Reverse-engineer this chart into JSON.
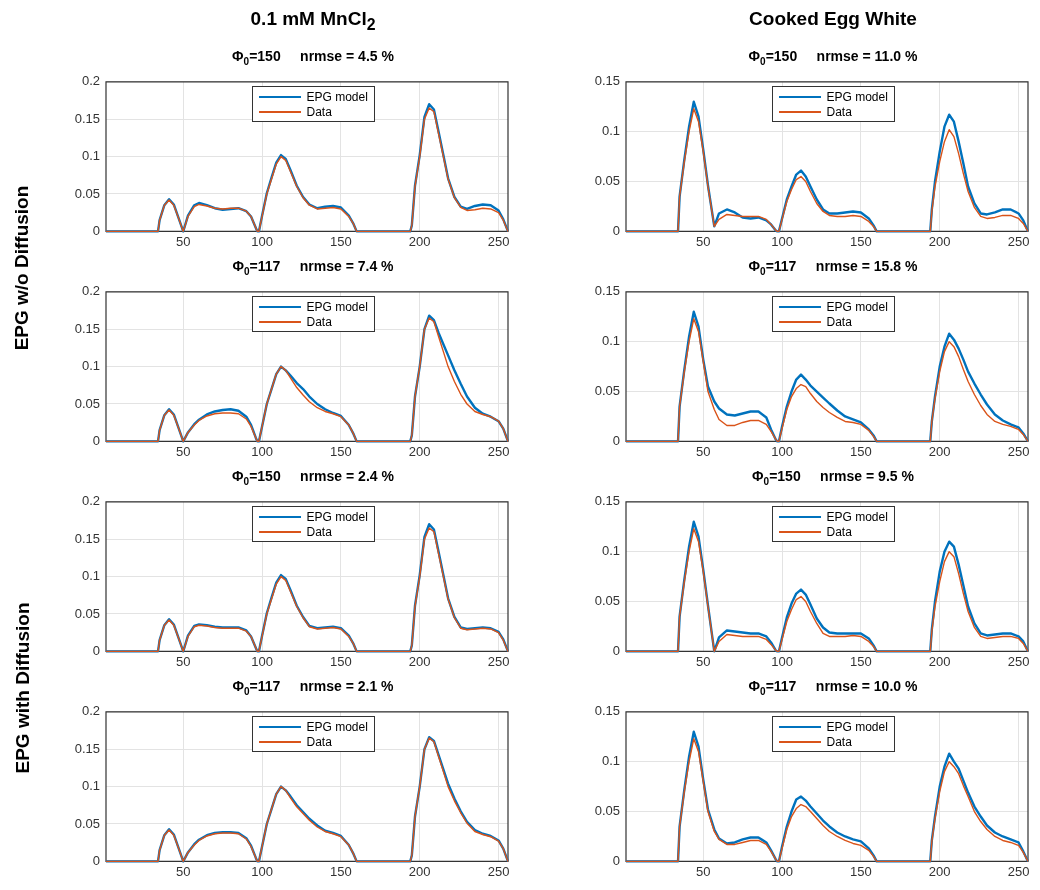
{
  "chart_data": [
    {
      "type": "line",
      "title": "Φ$_{0}$=150     nrmse = 4.5 %",
      "annotations": [
        "0.1 mM MnCl$_{2}$",
        "EPG w/o Diffusion"
      ],
      "legend": "top",
      "grid": true,
      "marker": "none",
      "line_style": "solid",
      "xlim": [
        1,
        256
      ],
      "xticks": [
        50,
        100,
        150,
        200,
        250
      ],
      "ylim": [
        0,
        0.2
      ],
      "yticks": [
        0,
        0.05,
        0.1,
        0.15,
        0.2
      ],
      "x": [
        1,
        34,
        35,
        38,
        41,
        44,
        47,
        50,
        53,
        57,
        60,
        65,
        70,
        75,
        80,
        85,
        90,
        93,
        96,
        97,
        98,
        100,
        103,
        106,
        109,
        112,
        115,
        118,
        122,
        126,
        130,
        135,
        140,
        145,
        150,
        155,
        158,
        160,
        170,
        194,
        195,
        197,
        200,
        203,
        206,
        209,
        212,
        215,
        218,
        222,
        226,
        230,
        235,
        240,
        245,
        250,
        253,
        256
      ],
      "series": [
        {
          "name": "EPG model",
          "color": "#0072bd",
          "values": [
            0,
            0,
            0.015,
            0.035,
            0.043,
            0.036,
            0.018,
            0,
            0.021,
            0.035,
            0.038,
            0.035,
            0.031,
            0.029,
            0.03,
            0.031,
            0.027,
            0.02,
            0.005,
            0,
            0,
            0.021,
            0.051,
            0.072,
            0.092,
            0.102,
            0.097,
            0.082,
            0.061,
            0.046,
            0.036,
            0.031,
            0.033,
            0.034,
            0.032,
            0.021,
            0.01,
            0,
            0,
            0,
            0.008,
            0.061,
            0.102,
            0.153,
            0.17,
            0.163,
            0.133,
            0.102,
            0.071,
            0.046,
            0.033,
            0.03,
            0.034,
            0.036,
            0.035,
            0.028,
            0.016,
            0
          ]
        },
        {
          "name": "Data",
          "color": "#d95319",
          "values": [
            0,
            0,
            0.015,
            0.035,
            0.042,
            0.035,
            0.018,
            0,
            0.02,
            0.033,
            0.036,
            0.034,
            0.031,
            0.03,
            0.031,
            0.031,
            0.027,
            0.02,
            0.005,
            0,
            0,
            0.02,
            0.05,
            0.07,
            0.09,
            0.1,
            0.095,
            0.08,
            0.06,
            0.045,
            0.035,
            0.03,
            0.031,
            0.032,
            0.03,
            0.02,
            0.01,
            0,
            0,
            0,
            0.008,
            0.06,
            0.1,
            0.15,
            0.165,
            0.16,
            0.13,
            0.1,
            0.07,
            0.045,
            0.032,
            0.028,
            0.029,
            0.031,
            0.03,
            0.025,
            0.015,
            0
          ]
        }
      ]
    },
    {
      "type": "line",
      "title": "Φ$_{0}$=150     nrmse = 11.0 %",
      "annotations": [
        "Cooked Egg White"
      ],
      "legend": "top",
      "grid": true,
      "marker": "none",
      "line_style": "solid",
      "xlim": [
        1,
        256
      ],
      "xticks": [
        50,
        100,
        150,
        200,
        250
      ],
      "ylim": [
        0,
        0.15
      ],
      "yticks": [
        0,
        0.05,
        0.1,
        0.15
      ],
      "x": [
        1,
        34,
        35,
        38,
        41,
        44,
        47,
        50,
        53,
        57,
        60,
        65,
        70,
        75,
        80,
        85,
        90,
        93,
        96,
        97,
        98,
        100,
        103,
        106,
        109,
        112,
        115,
        118,
        122,
        126,
        130,
        135,
        140,
        145,
        150,
        155,
        158,
        160,
        170,
        194,
        195,
        197,
        200,
        203,
        206,
        209,
        212,
        215,
        218,
        222,
        226,
        230,
        235,
        240,
        245,
        250,
        253,
        256
      ],
      "series": [
        {
          "name": "EPG model",
          "color": "#0072bd",
          "values": [
            0,
            0,
            0.035,
            0.072,
            0.105,
            0.13,
            0.115,
            0.082,
            0.046,
            0.005,
            0.018,
            0.022,
            0.019,
            0.014,
            0.013,
            0.014,
            0.011,
            0.007,
            0.001,
            0,
            0,
            0.013,
            0.032,
            0.045,
            0.057,
            0.061,
            0.055,
            0.045,
            0.032,
            0.022,
            0.018,
            0.018,
            0.019,
            0.02,
            0.019,
            0.013,
            0.006,
            0,
            0,
            0,
            0.022,
            0.05,
            0.08,
            0.105,
            0.117,
            0.11,
            0.09,
            0.068,
            0.045,
            0.028,
            0.018,
            0.017,
            0.019,
            0.022,
            0.022,
            0.018,
            0.011,
            0
          ]
        },
        {
          "name": "Data",
          "color": "#d95319",
          "values": [
            0,
            0,
            0.035,
            0.07,
            0.1,
            0.123,
            0.11,
            0.08,
            0.045,
            0.005,
            0.012,
            0.017,
            0.016,
            0.015,
            0.015,
            0.015,
            0.012,
            0.007,
            0.001,
            0,
            0,
            0.012,
            0.03,
            0.042,
            0.052,
            0.055,
            0.05,
            0.04,
            0.028,
            0.02,
            0.016,
            0.015,
            0.015,
            0.016,
            0.015,
            0.01,
            0.005,
            0,
            0,
            0,
            0.02,
            0.045,
            0.07,
            0.09,
            0.102,
            0.095,
            0.078,
            0.058,
            0.04,
            0.024,
            0.015,
            0.013,
            0.014,
            0.016,
            0.016,
            0.013,
            0.008,
            0
          ]
        }
      ]
    },
    {
      "type": "line",
      "title": "Φ$_{0}$=117     nrmse = 7.4 %",
      "legend": "top",
      "grid": true,
      "marker": "none",
      "line_style": "solid",
      "xlim": [
        1,
        256
      ],
      "xticks": [
        50,
        100,
        150,
        200,
        250
      ],
      "ylim": [
        0,
        0.2
      ],
      "yticks": [
        0,
        0.05,
        0.1,
        0.15,
        0.2
      ],
      "x": [
        1,
        34,
        35,
        38,
        41,
        44,
        47,
        50,
        53,
        57,
        60,
        65,
        70,
        75,
        80,
        85,
        90,
        93,
        96,
        97,
        98,
        100,
        103,
        106,
        109,
        112,
        115,
        118,
        122,
        126,
        130,
        135,
        140,
        145,
        150,
        155,
        158,
        160,
        170,
        194,
        195,
        197,
        200,
        203,
        206,
        209,
        212,
        215,
        218,
        222,
        226,
        230,
        235,
        240,
        245,
        250,
        253,
        256
      ],
      "series": [
        {
          "name": "EPG model",
          "color": "#0072bd",
          "values": [
            0,
            0,
            0.015,
            0.035,
            0.043,
            0.036,
            0.018,
            0,
            0.012,
            0.023,
            0.029,
            0.036,
            0.04,
            0.042,
            0.043,
            0.041,
            0.033,
            0.022,
            0.005,
            0,
            0,
            0.02,
            0.05,
            0.07,
            0.09,
            0.1,
            0.095,
            0.088,
            0.078,
            0.07,
            0.06,
            0.05,
            0.043,
            0.038,
            0.034,
            0.022,
            0.01,
            0,
            0,
            0,
            0.008,
            0.06,
            0.1,
            0.15,
            0.168,
            0.162,
            0.145,
            0.13,
            0.115,
            0.095,
            0.077,
            0.06,
            0.045,
            0.037,
            0.033,
            0.027,
            0.017,
            0
          ]
        },
        {
          "name": "Data",
          "color": "#d95319",
          "values": [
            0,
            0,
            0.015,
            0.035,
            0.042,
            0.035,
            0.018,
            0,
            0.012,
            0.022,
            0.028,
            0.034,
            0.037,
            0.038,
            0.038,
            0.037,
            0.03,
            0.02,
            0.005,
            0,
            0,
            0.02,
            0.05,
            0.07,
            0.09,
            0.1,
            0.095,
            0.085,
            0.072,
            0.062,
            0.053,
            0.045,
            0.04,
            0.037,
            0.033,
            0.022,
            0.01,
            0,
            0,
            0,
            0.008,
            0.06,
            0.1,
            0.15,
            0.165,
            0.16,
            0.14,
            0.12,
            0.1,
            0.08,
            0.063,
            0.05,
            0.04,
            0.036,
            0.033,
            0.027,
            0.017,
            0
          ]
        }
      ]
    },
    {
      "type": "line",
      "title": "Φ$_{0}$=117     nrmse = 15.8 %",
      "legend": "top",
      "grid": true,
      "marker": "none",
      "line_style": "solid",
      "xlim": [
        1,
        256
      ],
      "xticks": [
        50,
        100,
        150,
        200,
        250
      ],
      "ylim": [
        0,
        0.15
      ],
      "yticks": [
        0,
        0.05,
        0.1,
        0.15
      ],
      "x": [
        1,
        34,
        35,
        38,
        41,
        44,
        47,
        50,
        53,
        57,
        60,
        65,
        70,
        75,
        80,
        85,
        90,
        93,
        96,
        97,
        98,
        100,
        103,
        106,
        109,
        112,
        115,
        118,
        122,
        126,
        130,
        135,
        140,
        145,
        150,
        155,
        158,
        160,
        170,
        194,
        195,
        197,
        200,
        203,
        206,
        209,
        212,
        215,
        218,
        222,
        226,
        230,
        235,
        240,
        245,
        250,
        253,
        256
      ],
      "series": [
        {
          "name": "EPG model",
          "color": "#0072bd",
          "values": [
            0,
            0,
            0.035,
            0.072,
            0.105,
            0.13,
            0.115,
            0.082,
            0.055,
            0.04,
            0.033,
            0.027,
            0.026,
            0.028,
            0.03,
            0.03,
            0.024,
            0.012,
            0.002,
            0,
            0,
            0.015,
            0.035,
            0.05,
            0.062,
            0.067,
            0.062,
            0.056,
            0.05,
            0.044,
            0.038,
            0.031,
            0.025,
            0.022,
            0.019,
            0.012,
            0.006,
            0,
            0,
            0,
            0.02,
            0.045,
            0.075,
            0.095,
            0.108,
            0.102,
            0.093,
            0.082,
            0.07,
            0.058,
            0.047,
            0.037,
            0.027,
            0.021,
            0.017,
            0.014,
            0.008,
            0
          ]
        },
        {
          "name": "Data",
          "color": "#d95319",
          "values": [
            0,
            0,
            0.035,
            0.07,
            0.1,
            0.123,
            0.11,
            0.08,
            0.05,
            0.032,
            0.022,
            0.016,
            0.016,
            0.019,
            0.021,
            0.021,
            0.017,
            0.01,
            0.002,
            0,
            0,
            0.013,
            0.032,
            0.045,
            0.053,
            0.057,
            0.055,
            0.048,
            0.04,
            0.034,
            0.029,
            0.024,
            0.02,
            0.019,
            0.017,
            0.011,
            0.005,
            0,
            0,
            0,
            0.02,
            0.043,
            0.07,
            0.09,
            0.1,
            0.095,
            0.085,
            0.072,
            0.06,
            0.047,
            0.036,
            0.027,
            0.02,
            0.017,
            0.015,
            0.012,
            0.007,
            0
          ]
        }
      ]
    },
    {
      "type": "line",
      "title": "Φ$_{0}$=150     nrmse = 2.4 %",
      "annotations": [
        "EPG with Diffusion"
      ],
      "legend": "top",
      "grid": true,
      "marker": "none",
      "line_style": "solid",
      "xlim": [
        1,
        256
      ],
      "xticks": [
        50,
        100,
        150,
        200,
        250
      ],
      "ylim": [
        0,
        0.2
      ],
      "yticks": [
        0,
        0.05,
        0.1,
        0.15,
        0.2
      ],
      "x": [
        1,
        34,
        35,
        38,
        41,
        44,
        47,
        50,
        53,
        57,
        60,
        65,
        70,
        75,
        80,
        85,
        90,
        93,
        96,
        97,
        98,
        100,
        103,
        106,
        109,
        112,
        115,
        118,
        122,
        126,
        130,
        135,
        140,
        145,
        150,
        155,
        158,
        160,
        170,
        194,
        195,
        197,
        200,
        203,
        206,
        209,
        212,
        215,
        218,
        222,
        226,
        230,
        235,
        240,
        245,
        250,
        253,
        256
      ],
      "series": [
        {
          "name": "EPG model",
          "color": "#0072bd",
          "values": [
            0,
            0,
            0.015,
            0.035,
            0.043,
            0.036,
            0.018,
            0,
            0.021,
            0.034,
            0.036,
            0.035,
            0.033,
            0.032,
            0.032,
            0.032,
            0.028,
            0.02,
            0.005,
            0,
            0,
            0.021,
            0.051,
            0.072,
            0.092,
            0.102,
            0.097,
            0.082,
            0.061,
            0.046,
            0.034,
            0.031,
            0.032,
            0.033,
            0.031,
            0.021,
            0.01,
            0,
            0,
            0,
            0.008,
            0.061,
            0.102,
            0.153,
            0.17,
            0.163,
            0.133,
            0.102,
            0.071,
            0.046,
            0.032,
            0.03,
            0.031,
            0.032,
            0.031,
            0.026,
            0.016,
            0
          ]
        },
        {
          "name": "Data",
          "color": "#d95319",
          "values": [
            0,
            0,
            0.015,
            0.035,
            0.042,
            0.035,
            0.018,
            0,
            0.02,
            0.033,
            0.035,
            0.034,
            0.032,
            0.031,
            0.031,
            0.031,
            0.027,
            0.02,
            0.005,
            0,
            0,
            0.02,
            0.05,
            0.07,
            0.09,
            0.1,
            0.095,
            0.08,
            0.06,
            0.045,
            0.033,
            0.03,
            0.031,
            0.032,
            0.03,
            0.02,
            0.01,
            0,
            0,
            0,
            0.008,
            0.06,
            0.1,
            0.15,
            0.165,
            0.16,
            0.13,
            0.1,
            0.07,
            0.045,
            0.031,
            0.029,
            0.03,
            0.031,
            0.03,
            0.025,
            0.015,
            0
          ]
        }
      ]
    },
    {
      "type": "line",
      "title": "Φ$_{0}$=150     nrmse = 9.5 %",
      "legend": "top",
      "grid": true,
      "marker": "none",
      "line_style": "solid",
      "xlim": [
        1,
        256
      ],
      "xticks": [
        50,
        100,
        150,
        200,
        250
      ],
      "ylim": [
        0,
        0.15
      ],
      "yticks": [
        0,
        0.05,
        0.1,
        0.15
      ],
      "x": [
        1,
        34,
        35,
        38,
        41,
        44,
        47,
        50,
        53,
        57,
        60,
        65,
        70,
        75,
        80,
        85,
        90,
        93,
        96,
        97,
        98,
        100,
        103,
        106,
        109,
        112,
        115,
        118,
        122,
        126,
        130,
        135,
        140,
        145,
        150,
        155,
        158,
        160,
        170,
        194,
        195,
        197,
        200,
        203,
        206,
        209,
        212,
        215,
        218,
        222,
        226,
        230,
        235,
        240,
        245,
        250,
        253,
        256
      ],
      "series": [
        {
          "name": "EPG model",
          "color": "#0072bd",
          "values": [
            0,
            0,
            0.035,
            0.072,
            0.105,
            0.13,
            0.115,
            0.082,
            0.046,
            0,
            0.014,
            0.021,
            0.02,
            0.019,
            0.018,
            0.018,
            0.015,
            0.009,
            0.001,
            0,
            0,
            0.014,
            0.034,
            0.048,
            0.058,
            0.062,
            0.057,
            0.047,
            0.033,
            0.024,
            0.019,
            0.018,
            0.018,
            0.018,
            0.018,
            0.013,
            0.006,
            0,
            0,
            0,
            0.022,
            0.05,
            0.08,
            0.1,
            0.11,
            0.105,
            0.087,
            0.066,
            0.045,
            0.028,
            0.018,
            0.016,
            0.017,
            0.018,
            0.018,
            0.015,
            0.01,
            0
          ]
        },
        {
          "name": "Data",
          "color": "#d95319",
          "values": [
            0,
            0,
            0.035,
            0.07,
            0.1,
            0.123,
            0.11,
            0.08,
            0.045,
            0,
            0.01,
            0.017,
            0.016,
            0.015,
            0.015,
            0.015,
            0.012,
            0.007,
            0.001,
            0,
            0,
            0.012,
            0.03,
            0.042,
            0.052,
            0.055,
            0.05,
            0.04,
            0.028,
            0.018,
            0.015,
            0.015,
            0.015,
            0.016,
            0.015,
            0.01,
            0.005,
            0,
            0,
            0,
            0.02,
            0.045,
            0.07,
            0.09,
            0.1,
            0.095,
            0.078,
            0.058,
            0.04,
            0.024,
            0.015,
            0.013,
            0.014,
            0.015,
            0.015,
            0.013,
            0.008,
            0
          ]
        }
      ]
    },
    {
      "type": "line",
      "title": "Φ$_{0}$=117     nrmse = 2.1 %",
      "legend": "top",
      "grid": true,
      "marker": "none",
      "line_style": "solid",
      "xlim": [
        1,
        256
      ],
      "xticks": [
        50,
        100,
        150,
        200,
        250
      ],
      "ylim": [
        0,
        0.2
      ],
      "yticks": [
        0,
        0.05,
        0.1,
        0.15,
        0.2
      ],
      "x": [
        1,
        34,
        35,
        38,
        41,
        44,
        47,
        50,
        53,
        57,
        60,
        65,
        70,
        75,
        80,
        85,
        90,
        93,
        96,
        97,
        98,
        100,
        103,
        106,
        109,
        112,
        115,
        118,
        122,
        126,
        130,
        135,
        140,
        145,
        150,
        155,
        158,
        160,
        170,
        194,
        195,
        197,
        200,
        203,
        206,
        209,
        212,
        215,
        218,
        222,
        226,
        230,
        235,
        240,
        245,
        250,
        253,
        256
      ],
      "series": [
        {
          "name": "EPG model",
          "color": "#0072bd",
          "values": [
            0,
            0,
            0.015,
            0.035,
            0.043,
            0.036,
            0.018,
            0,
            0.012,
            0.023,
            0.029,
            0.035,
            0.038,
            0.039,
            0.039,
            0.038,
            0.031,
            0.021,
            0.005,
            0,
            0,
            0.02,
            0.05,
            0.07,
            0.09,
            0.1,
            0.095,
            0.087,
            0.075,
            0.066,
            0.057,
            0.048,
            0.041,
            0.038,
            0.034,
            0.022,
            0.01,
            0,
            0,
            0,
            0.008,
            0.06,
            0.1,
            0.15,
            0.166,
            0.161,
            0.142,
            0.123,
            0.104,
            0.084,
            0.067,
            0.053,
            0.042,
            0.037,
            0.034,
            0.028,
            0.017,
            0
          ]
        },
        {
          "name": "Data",
          "color": "#d95319",
          "values": [
            0,
            0,
            0.015,
            0.035,
            0.042,
            0.035,
            0.018,
            0,
            0.012,
            0.022,
            0.028,
            0.034,
            0.037,
            0.038,
            0.038,
            0.037,
            0.03,
            0.02,
            0.005,
            0,
            0,
            0.02,
            0.05,
            0.07,
            0.09,
            0.1,
            0.095,
            0.085,
            0.073,
            0.064,
            0.055,
            0.046,
            0.04,
            0.037,
            0.033,
            0.022,
            0.01,
            0,
            0,
            0,
            0.008,
            0.06,
            0.1,
            0.15,
            0.165,
            0.16,
            0.14,
            0.12,
            0.1,
            0.081,
            0.065,
            0.051,
            0.04,
            0.036,
            0.033,
            0.027,
            0.017,
            0
          ]
        }
      ]
    },
    {
      "type": "line",
      "title": "Φ$_{0}$=117     nrmse = 10.0 %",
      "legend": "top",
      "grid": true,
      "marker": "none",
      "line_style": "solid",
      "xlim": [
        1,
        256
      ],
      "xticks": [
        50,
        100,
        150,
        200,
        250
      ],
      "ylim": [
        0,
        0.15
      ],
      "yticks": [
        0,
        0.05,
        0.1,
        0.15
      ],
      "x": [
        1,
        34,
        35,
        38,
        41,
        44,
        47,
        50,
        53,
        57,
        60,
        65,
        70,
        75,
        80,
        85,
        90,
        93,
        96,
        97,
        98,
        100,
        103,
        106,
        109,
        112,
        115,
        118,
        122,
        126,
        130,
        135,
        140,
        145,
        150,
        155,
        158,
        160,
        170,
        194,
        195,
        197,
        200,
        203,
        206,
        209,
        212,
        215,
        218,
        222,
        226,
        230,
        235,
        240,
        245,
        250,
        253,
        256
      ],
      "series": [
        {
          "name": "EPG model",
          "color": "#0072bd",
          "values": [
            0,
            0,
            0.035,
            0.072,
            0.105,
            0.13,
            0.115,
            0.082,
            0.052,
            0.032,
            0.023,
            0.018,
            0.019,
            0.022,
            0.024,
            0.024,
            0.019,
            0.011,
            0.002,
            0,
            0,
            0.015,
            0.035,
            0.05,
            0.062,
            0.065,
            0.061,
            0.055,
            0.048,
            0.041,
            0.035,
            0.029,
            0.025,
            0.022,
            0.02,
            0.013,
            0.006,
            0,
            0,
            0,
            0.021,
            0.045,
            0.075,
            0.095,
            0.108,
            0.1,
            0.093,
            0.081,
            0.069,
            0.055,
            0.045,
            0.036,
            0.029,
            0.025,
            0.022,
            0.019,
            0.01,
            0
          ]
        },
        {
          "name": "Data",
          "color": "#d95319",
          "values": [
            0,
            0,
            0.035,
            0.07,
            0.1,
            0.123,
            0.11,
            0.08,
            0.05,
            0.03,
            0.022,
            0.017,
            0.017,
            0.019,
            0.021,
            0.021,
            0.017,
            0.01,
            0.002,
            0,
            0,
            0.013,
            0.032,
            0.045,
            0.053,
            0.057,
            0.055,
            0.05,
            0.043,
            0.036,
            0.03,
            0.025,
            0.021,
            0.018,
            0.016,
            0.011,
            0.005,
            0,
            0,
            0,
            0.02,
            0.043,
            0.07,
            0.09,
            0.1,
            0.095,
            0.088,
            0.076,
            0.065,
            0.05,
            0.04,
            0.032,
            0.025,
            0.021,
            0.019,
            0.016,
            0.009,
            0
          ]
        }
      ]
    }
  ]
}
